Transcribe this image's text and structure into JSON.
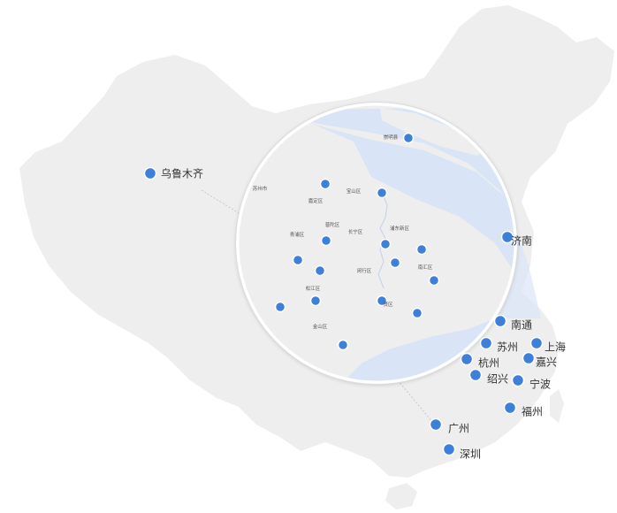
{
  "map": {
    "colors": {
      "land": "#eeeeee",
      "marker": "#3d7fd9",
      "marker_stroke": "#ffffff",
      "water": "#d9e5f6",
      "circle_land": "#eeeeee",
      "text": "#333333"
    },
    "cities": [
      {
        "name": "乌鲁木齐"
      },
      {
        "name": "济南"
      },
      {
        "name": "南通"
      },
      {
        "name": "苏州"
      },
      {
        "name": "上海"
      },
      {
        "name": "杭州"
      },
      {
        "name": "嘉兴"
      },
      {
        "name": "绍兴"
      },
      {
        "name": "宁波"
      },
      {
        "name": "福州"
      },
      {
        "name": "广州"
      },
      {
        "name": "深圳"
      }
    ],
    "inset": {
      "districts": [
        {
          "name": "崇明县"
        },
        {
          "name": "苏州市"
        },
        {
          "name": "嘉定区"
        },
        {
          "name": "宝山区"
        },
        {
          "name": "青浦区"
        },
        {
          "name": "普陀区"
        },
        {
          "name": "长宁区"
        },
        {
          "name": "浦东新区"
        },
        {
          "name": "闵行区"
        },
        {
          "name": "南汇区"
        },
        {
          "name": "松江区"
        },
        {
          "name": "贤区"
        },
        {
          "name": "金山区"
        }
      ]
    }
  }
}
